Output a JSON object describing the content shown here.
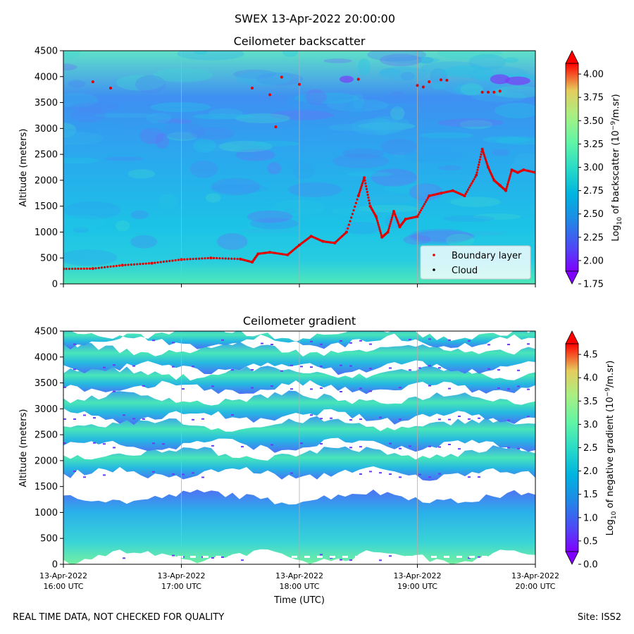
{
  "figure": {
    "suptitle": "SWEX 13-Apr-2022 20:00:00",
    "disclaimer": "REAL TIME DATA, NOT CHECKED FOR QUALITY",
    "site": "Site: ISS2"
  },
  "colors": {
    "colormap": [
      "#8000ff",
      "#4c4cf5",
      "#1e8be6",
      "#00b4e0",
      "#2adcc6",
      "#60f5a6",
      "#a8f082",
      "#e6cb5d",
      "#ff8a3a",
      "#ff0000"
    ],
    "boundary_layer": "#e00000",
    "cloud": "#000000",
    "gridline": "#b0b0b0"
  },
  "chart_data": [
    {
      "type": "heatmap",
      "title": "Ceilometer backscatter",
      "xlabel": "",
      "ylabel": "Altitude (meters)",
      "ylim": [
        0,
        4500
      ],
      "yticks": [
        "0",
        "500",
        "1000",
        "1500",
        "2000",
        "2500",
        "3000",
        "3500",
        "4000",
        "4500"
      ],
      "xlim_hours_utc": [
        16,
        20
      ],
      "grid_x": true,
      "colorbar": {
        "label_prefix": "Log",
        "label_sub": "10",
        "label_mid": " of backscatter (10",
        "label_sup": "−9",
        "label_suffix": "/m.sr)",
        "range": [
          1.75,
          4.25
        ],
        "ticks": [
          "1.75",
          "2.00",
          "2.25",
          "2.50",
          "2.75",
          "3.00",
          "3.25",
          "3.50",
          "3.75",
          "4.00"
        ]
      },
      "legend": {
        "position": "lower-right",
        "entries": [
          "Boundary layer",
          "Cloud"
        ]
      },
      "boundary_layer": {
        "name": "Boundary layer",
        "time_h": [
          16.0,
          16.25,
          16.5,
          16.75,
          17.0,
          17.25,
          17.5,
          17.6,
          17.65,
          17.75,
          17.9,
          18.0,
          18.1,
          18.2,
          18.3,
          18.4,
          18.5,
          18.55,
          18.6,
          18.65,
          18.7,
          18.75,
          18.8,
          18.85,
          18.9,
          19.0,
          19.1,
          19.2,
          19.3,
          19.4,
          19.5,
          19.55,
          19.6,
          19.65,
          19.7,
          19.75,
          19.8,
          19.85,
          19.9,
          20.0
        ],
        "alt_m": [
          290,
          295,
          360,
          400,
          470,
          500,
          480,
          420,
          580,
          610,
          560,
          750,
          920,
          820,
          790,
          1000,
          1700,
          2050,
          1500,
          1300,
          900,
          1000,
          1400,
          1100,
          1250,
          1300,
          1700,
          1750,
          1800,
          1700,
          2100,
          2600,
          2250,
          2000,
          1900,
          1800,
          2200,
          2150,
          2200,
          2150
        ]
      },
      "boundary_layer_upper": {
        "time_h": [
          16.25,
          16.4,
          17.6,
          17.75,
          17.8,
          17.85,
          18.0,
          18.5,
          19.0,
          19.05,
          19.1,
          19.2,
          19.25,
          19.55,
          19.6,
          19.65,
          19.7
        ],
        "alt_m": [
          3900,
          3780,
          3780,
          3650,
          3030,
          3990,
          3850,
          3950,
          3830,
          3800,
          3900,
          3940,
          3930,
          3700,
          3700,
          3700,
          3720
        ]
      },
      "cloud": {
        "name": "Cloud",
        "time_h": [],
        "alt_m": []
      }
    },
    {
      "type": "heatmap",
      "title": "Ceilometer gradient",
      "xlabel": "Time (UTC)",
      "ylabel": "Altitude (meters)",
      "ylim": [
        0,
        4500
      ],
      "yticks": [
        "0",
        "500",
        "1000",
        "1500",
        "2000",
        "2500",
        "3000",
        "3500",
        "4000",
        "4500"
      ],
      "xlim_hours_utc": [
        16,
        20
      ],
      "grid_x": true,
      "xticks": [
        {
          "date": "13-Apr-2022",
          "time": "16:00 UTC"
        },
        {
          "date": "13-Apr-2022",
          "time": "17:00 UTC"
        },
        {
          "date": "13-Apr-2022",
          "time": "18:00 UTC"
        },
        {
          "date": "13-Apr-2022",
          "time": "19:00 UTC"
        },
        {
          "date": "13-Apr-2022",
          "time": "20:00 UTC"
        }
      ],
      "colorbar": {
        "label_prefix": "Log",
        "label_sub": "10",
        "label_mid": " of negative gradient (10",
        "label_sup": "−9",
        "label_suffix": "/m.sr)",
        "range": [
          0.0,
          5.0
        ],
        "ticks": [
          "0.0",
          "0.5",
          "1.0",
          "1.5",
          "2.0",
          "2.5",
          "3.0",
          "3.5",
          "4.0",
          "4.5"
        ]
      },
      "layers_alt_m": [
        [
          150,
          1300
        ],
        [
          1750,
          2150
        ],
        [
          2300,
          2700
        ],
        [
          2850,
          3200
        ],
        [
          3400,
          3700
        ],
        [
          3800,
          4150
        ],
        [
          4300,
          4450
        ]
      ]
    }
  ]
}
